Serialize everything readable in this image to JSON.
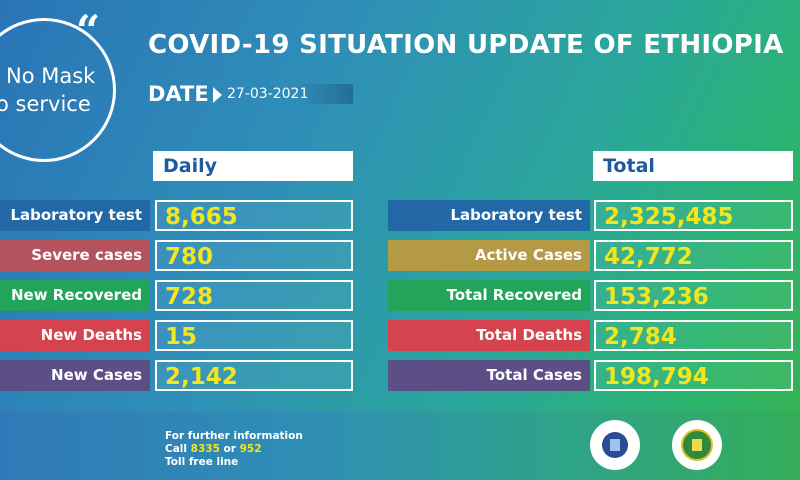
{
  "slogan": {
    "line1": "No Mask",
    "line2": "o service",
    "quote_mark": "“"
  },
  "title": "COVID-19 SITUATION UPDATE OF ETHIOPIA",
  "date": {
    "label": "DATE",
    "value": "27-03-2021"
  },
  "daily": {
    "header": "Daily",
    "rows": [
      {
        "label": "Laboratory test",
        "value": "8,665",
        "color": "#2368a6"
      },
      {
        "label": "Severe cases",
        "value": "780",
        "color": "#b4525e"
      },
      {
        "label": "New Recovered",
        "value": "728",
        "color": "#23a45b"
      },
      {
        "label": "New Deaths",
        "value": "15",
        "color": "#d5444e"
      },
      {
        "label": "New Cases",
        "value": "2,142",
        "color": "#5b4f86"
      }
    ]
  },
  "total": {
    "header": "Total",
    "rows": [
      {
        "label": "Laboratory test",
        "value": "2,325,485",
        "color": "#2368a6"
      },
      {
        "label": "Active Cases",
        "value": "42,772",
        "color": "#b59a45"
      },
      {
        "label": "Total Recovered",
        "value": "153,236",
        "color": "#23a45b"
      },
      {
        "label": "Total Deaths",
        "value": "2,784",
        "color": "#d5444e"
      },
      {
        "label": "Total Cases",
        "value": "198,794",
        "color": "#5b4f86"
      }
    ]
  },
  "footer": {
    "line1": "For further information",
    "call_prefix": "Call ",
    "number1": "8335",
    "or": " or ",
    "number2": "952",
    "line3": "Toll free line"
  },
  "logos": [
    "ethiopian-public-health-institute-logo",
    "ministry-of-health-logo"
  ]
}
